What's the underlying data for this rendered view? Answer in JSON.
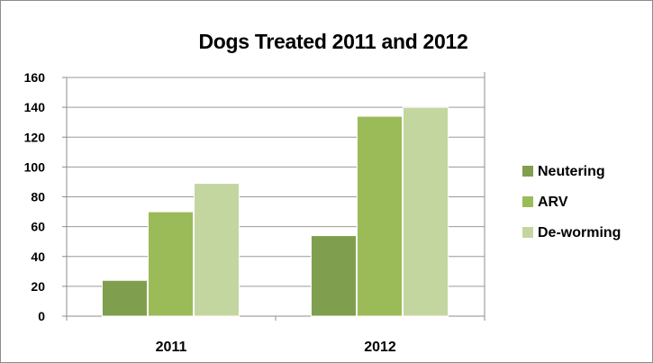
{
  "chart_data": {
    "type": "bar",
    "title": "Dogs Treated 2011 and 2012",
    "xlabel": "",
    "ylabel": "",
    "categories": [
      "2011",
      "2012"
    ],
    "ylim": [
      0,
      160
    ],
    "yticks": [
      0,
      20,
      40,
      60,
      80,
      100,
      120,
      140,
      160
    ],
    "grid": true,
    "legend_position": "right",
    "series": [
      {
        "name": "Neutering",
        "values": [
          24,
          54
        ],
        "color": "#7f9f4f"
      },
      {
        "name": "ARV",
        "values": [
          70,
          134
        ],
        "color": "#9bbb59"
      },
      {
        "name": "De-worming",
        "values": [
          89,
          140
        ],
        "color": "#c4d6a0"
      }
    ]
  }
}
